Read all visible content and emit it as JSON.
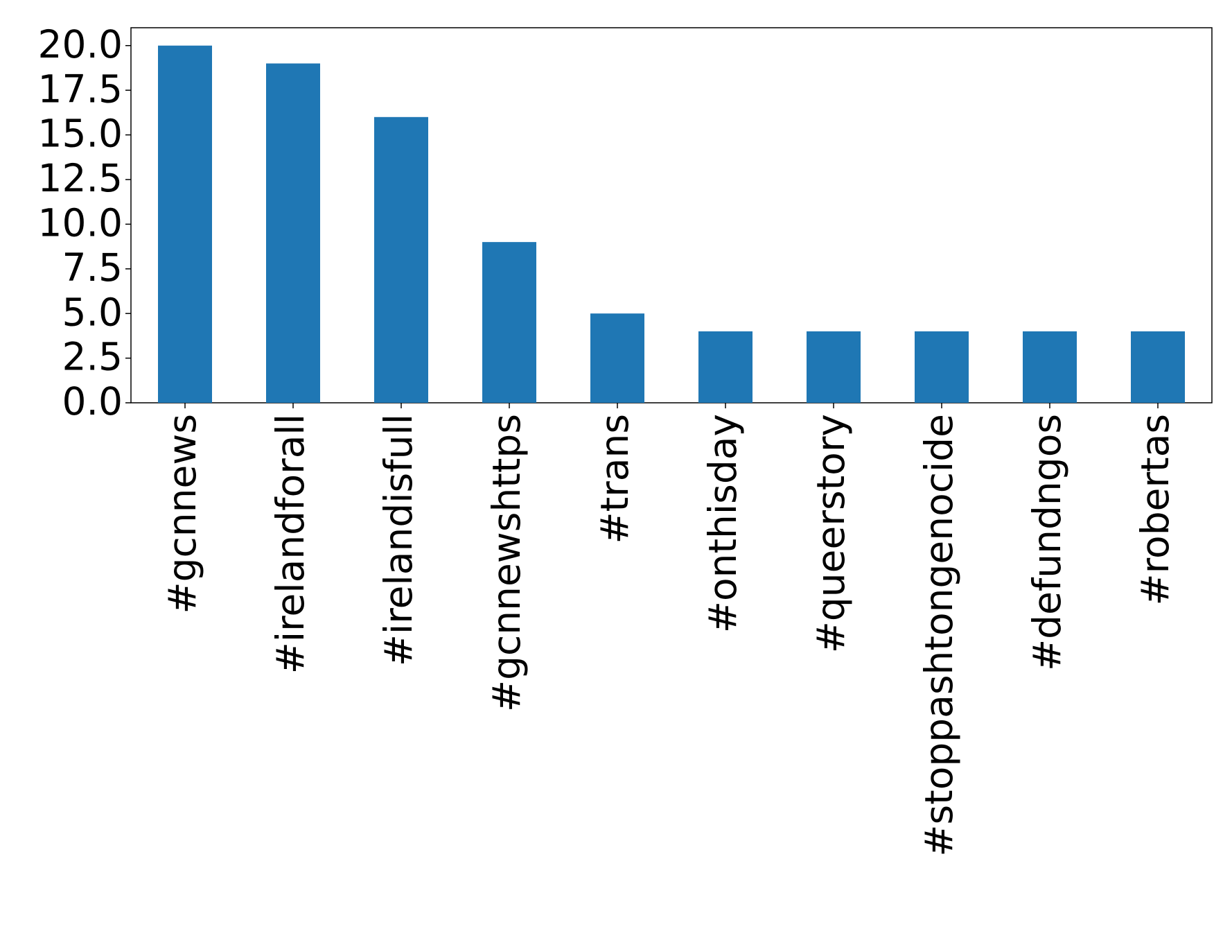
{
  "chart_data": {
    "type": "bar",
    "categories": [
      "#gcnnews",
      "#irelandforall",
      "#irelandisfull",
      "#gcnnewshttps",
      "#trans",
      "#onthisday",
      "#queerstory",
      "#stoppashtongenocide",
      "#defundngos",
      "#robertas"
    ],
    "values": [
      20,
      19,
      16,
      9,
      5,
      4,
      4,
      4,
      4,
      4
    ],
    "color": "#1f77b4",
    "ylim": [
      0,
      21
    ],
    "yticks": [
      {
        "value": 0,
        "label": "0.0"
      },
      2.5,
      {
        "value": 5,
        "label": "5.0"
      },
      7.5,
      {
        "value": 10,
        "label": "10.0"
      },
      12.5,
      {
        "value": 15,
        "label": "15.0"
      },
      17.5,
      {
        "value": 20,
        "label": "20.0"
      }
    ],
    "grid": false
  }
}
